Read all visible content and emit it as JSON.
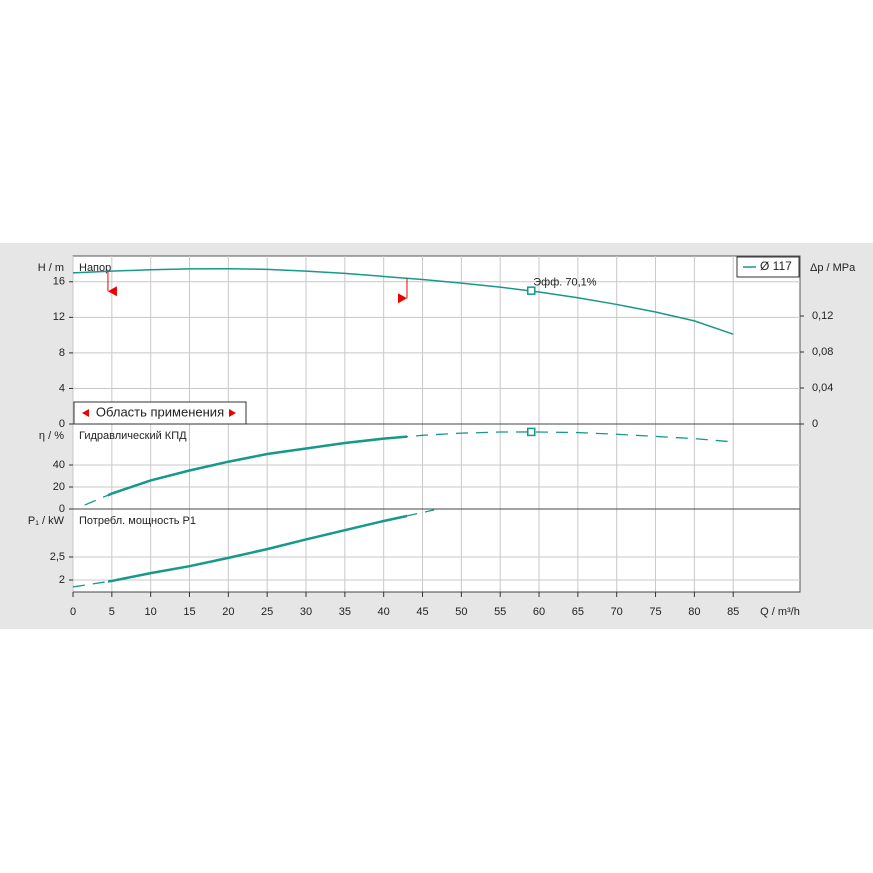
{
  "chart_data": [
    {
      "type": "line",
      "title": "Напор",
      "y_label": "H / m",
      "y2_label": "Δp / MPa",
      "ylim": [
        0,
        18.9
      ],
      "yticks": [
        0,
        4,
        8,
        12,
        16
      ],
      "y2lim": [
        0,
        0.1867
      ],
      "y2ticks": [
        0,
        {
          "value": 0.04,
          "label": "0,04"
        },
        {
          "value": 0.08,
          "label": "0,08"
        },
        {
          "value": 0.12,
          "label": "0,12"
        }
      ],
      "x": [
        0,
        5,
        10,
        15,
        20,
        25,
        30,
        35,
        40,
        45,
        50,
        55,
        60,
        65,
        70,
        75,
        80,
        85
      ],
      "series": [
        {
          "name": "Ø 117",
          "color": "#16998a",
          "values": [
            17.0,
            17.2,
            17.35,
            17.45,
            17.47,
            17.4,
            17.2,
            16.95,
            16.6,
            16.25,
            15.85,
            15.4,
            14.85,
            14.2,
            13.45,
            12.6,
            11.6,
            10.1
          ]
        }
      ],
      "best_point": {
        "x": 59,
        "y": 15.0,
        "label": "Эфф.  70,1%"
      },
      "operating_range": [
        4.5,
        43
      ],
      "range_label": "Область применения",
      "grid": true,
      "legend": "upper right"
    },
    {
      "type": "line",
      "title": "Гидравлический КПД",
      "y_label": "η / %",
      "ylim": [
        0,
        77.3
      ],
      "yticks": [
        0,
        20,
        40
      ],
      "x": [
        1.5,
        5,
        10,
        15,
        20,
        25,
        30,
        35,
        40,
        45,
        50,
        55,
        59,
        65,
        70,
        75,
        80,
        85
      ],
      "series": [
        {
          "color": "#16998a",
          "dashed": true,
          "values": [
            3.6,
            14,
            26,
            35,
            43,
            50,
            55,
            60,
            64,
            67,
            69,
            70,
            70.1,
            69.5,
            68,
            66,
            64,
            61
          ]
        }
      ],
      "best_point": {
        "x": 59,
        "y": 70.1
      },
      "grid": true
    },
    {
      "type": "line",
      "title": "Потребл. мощность P1",
      "y_label": "P₁ / kW",
      "x_label": "Q / m³/h",
      "ylim": [
        1.74,
        3.54
      ],
      "yticks": [
        2,
        {
          "value": 2.5,
          "label": "2,5"
        }
      ],
      "xlim": [
        0,
        93.6
      ],
      "xticks": [
        0,
        5,
        10,
        15,
        20,
        25,
        30,
        35,
        40,
        45,
        50,
        55,
        60,
        65,
        70,
        75,
        80,
        85
      ],
      "x": [
        0,
        5,
        10,
        15,
        20,
        25,
        30,
        35,
        40,
        43,
        46.5
      ],
      "series": [
        {
          "color": "#16998a",
          "dashed": true,
          "values": [
            1.85,
            1.98,
            2.15,
            2.3,
            2.48,
            2.67,
            2.88,
            3.08,
            3.28,
            3.39,
            3.52
          ]
        }
      ],
      "grid": true
    }
  ]
}
